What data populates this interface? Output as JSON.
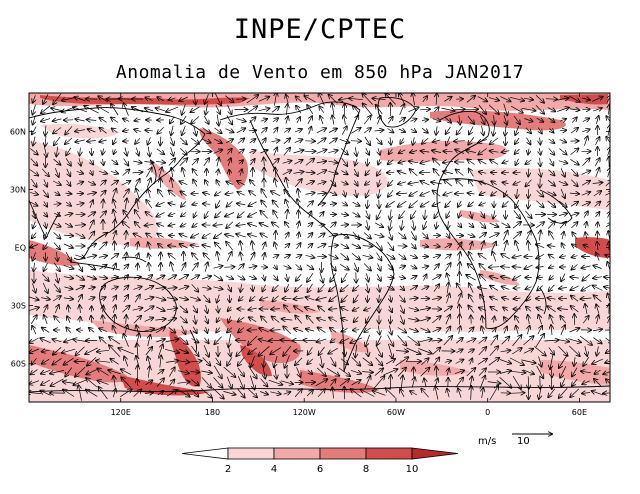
{
  "header": {
    "title": "INPE/CPTEC",
    "subtitle": "Anomalia de Vento em 850 hPa JAN2017"
  },
  "map": {
    "lat_labels": [
      "60N",
      "30N",
      "EQ",
      "30S",
      "60S"
    ],
    "lat_values": [
      60,
      30,
      0,
      -30,
      -60
    ],
    "lon_labels": [
      "120E",
      "180",
      "120W",
      "60W",
      "0",
      "60E"
    ],
    "lon_values": [
      120,
      180,
      240,
      300,
      360,
      420
    ],
    "lon_range": [
      60,
      440
    ],
    "lat_range": [
      -80,
      80
    ]
  },
  "vector_key": {
    "unit": "m/s",
    "value": "10"
  },
  "colorbar": {
    "ticks": [
      "2",
      "4",
      "6",
      "8",
      "10"
    ],
    "colors": [
      "#ffffff",
      "#f9d6d6",
      "#f1a9a9",
      "#e57c7c",
      "#d24c4c",
      "#b82a2a"
    ]
  }
}
